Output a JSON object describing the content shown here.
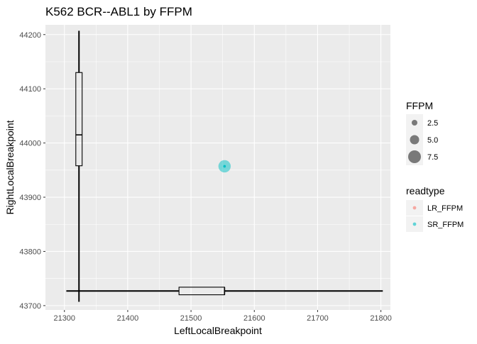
{
  "chart_data": {
    "type": "scatter",
    "title": "K562 BCR--ABL1 by FFPM",
    "xlabel": "LeftLocalBreakpoint",
    "ylabel": "RightLocalBreakpoint",
    "xlim": [
      21270,
      21815
    ],
    "ylim": [
      43692,
      44218
    ],
    "x_ticks": [
      21300,
      21400,
      21500,
      21600,
      21700,
      21800
    ],
    "y_ticks": [
      43700,
      43800,
      43900,
      44000,
      44100,
      44200
    ],
    "grid": true,
    "points": [
      {
        "x": 21553,
        "y": 43957,
        "FFPM": 7.2,
        "readtype": "SR_FFPM",
        "center_dot": true
      }
    ],
    "boxplots": {
      "vertical": {
        "x": 21323,
        "box_half_width": 5,
        "whisker_low": 43707,
        "q1": 43958,
        "median": 44015,
        "q3": 44130,
        "whisker_high": 44207
      },
      "horizontal": {
        "y": 43727,
        "box_half_height": 7,
        "whisker_low": 21303,
        "q1": 21481,
        "median": 21553,
        "q3": 21553,
        "whisker_high": 21803
      }
    },
    "legends": {
      "size": {
        "title": "FFPM",
        "entries": [
          {
            "label": "2.5",
            "value": 2.5
          },
          {
            "label": "5.0",
            "value": 5.0
          },
          {
            "label": "7.5",
            "value": 7.5
          }
        ]
      },
      "color": {
        "title": "readtype",
        "entries": [
          {
            "label": "LR_FFPM",
            "color": "#F8766D"
          },
          {
            "label": "SR_FFPM",
            "color": "#00BFC4"
          }
        ]
      }
    },
    "colors": {
      "panel": "#EBEBEB",
      "grid_major": "#FFFFFF",
      "axis_text": "#4D4D4D",
      "size_key": "#000000"
    }
  }
}
